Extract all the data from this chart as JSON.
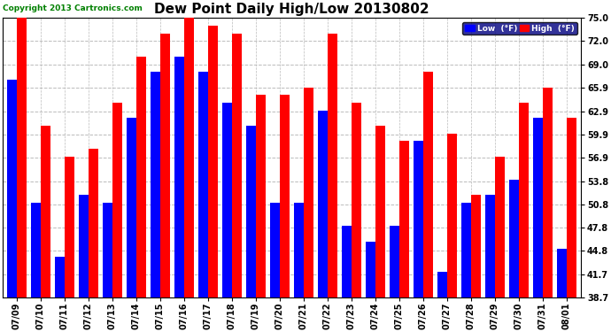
{
  "title": "Dew Point Daily High/Low 20130802",
  "copyright": "Copyright 2013 Cartronics.com",
  "dates": [
    "07/09",
    "07/10",
    "07/11",
    "07/12",
    "07/13",
    "07/14",
    "07/15",
    "07/16",
    "07/17",
    "07/18",
    "07/19",
    "07/20",
    "07/21",
    "07/22",
    "07/23",
    "07/24",
    "07/25",
    "07/26",
    "07/27",
    "07/28",
    "07/29",
    "07/30",
    "07/31",
    "08/01"
  ],
  "high": [
    75.0,
    61.0,
    57.0,
    58.0,
    64.0,
    70.0,
    73.0,
    75.0,
    74.0,
    73.0,
    65.0,
    65.0,
    66.0,
    73.0,
    64.0,
    61.0,
    59.0,
    68.0,
    60.0,
    52.0,
    57.0,
    64.0,
    66.0,
    62.0
  ],
  "low": [
    67.0,
    51.0,
    44.0,
    52.0,
    51.0,
    62.0,
    68.0,
    70.0,
    68.0,
    64.0,
    61.0,
    51.0,
    51.0,
    63.0,
    48.0,
    46.0,
    48.0,
    59.0,
    42.0,
    51.0,
    52.0,
    54.0,
    62.0,
    45.0
  ],
  "ymin": 38.7,
  "ymax": 75.0,
  "yticks": [
    38.7,
    41.7,
    44.8,
    47.8,
    50.8,
    53.8,
    56.9,
    59.9,
    62.9,
    65.9,
    69.0,
    72.0,
    75.0
  ],
  "bar_width": 0.42,
  "high_color": "#ff0000",
  "low_color": "#0000ff",
  "bg_color": "#ffffff",
  "grid_color": "#bbbbbb",
  "title_fontsize": 11,
  "tick_fontsize": 7,
  "legend_high_label": "High  (°F)",
  "legend_low_label": "Low  (°F)"
}
